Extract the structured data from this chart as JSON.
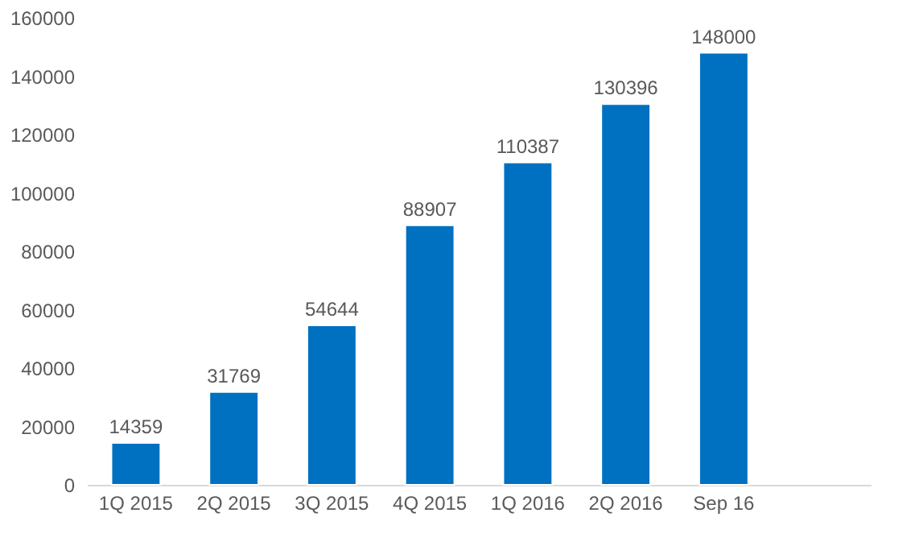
{
  "chart_data": {
    "type": "bar",
    "categories": [
      "1Q 2015",
      "2Q 2015",
      "3Q 2015",
      "4Q 2015",
      "1Q 2016",
      "2Q 2016",
      "Sep 16",
      null
    ],
    "values": [
      14359,
      31769,
      54644,
      88907,
      110387,
      130396,
      148000,
      null
    ],
    "color": "#0070c0",
    "ylim": [
      0,
      160000
    ],
    "yticks": [
      0,
      20000,
      40000,
      60000,
      80000,
      100000,
      120000,
      140000,
      160000
    ],
    "grid": false,
    "data_labels": true
  }
}
